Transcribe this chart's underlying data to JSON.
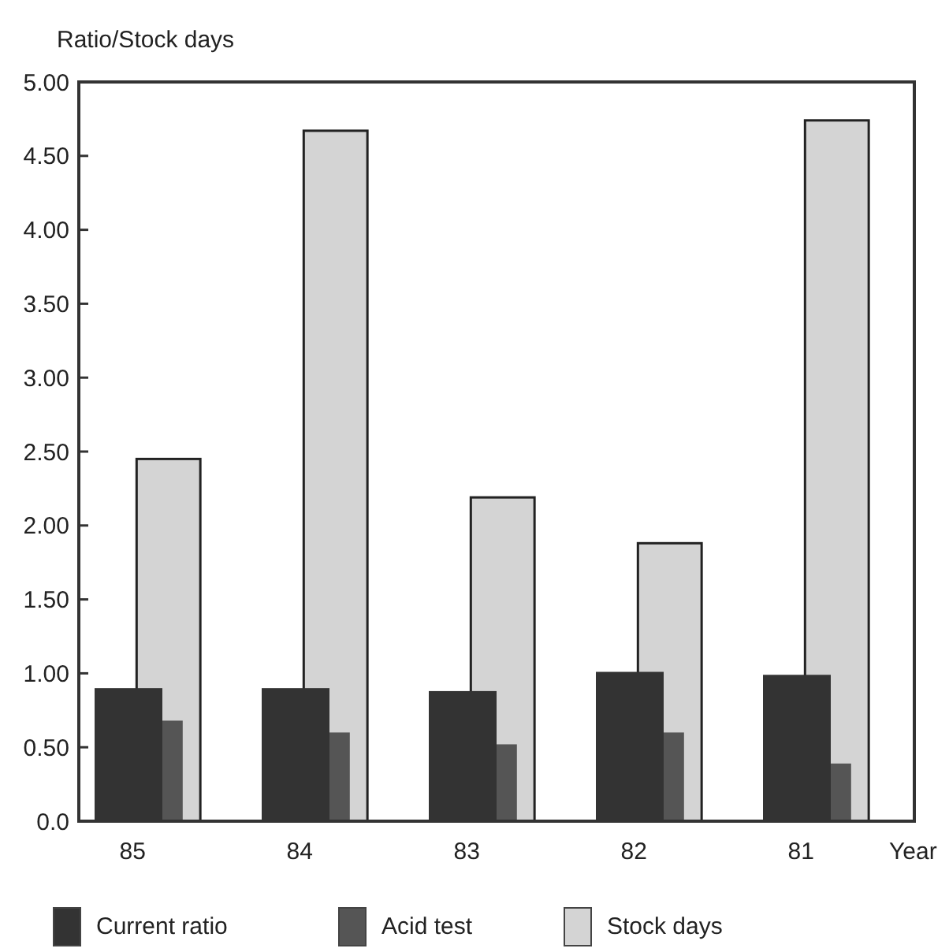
{
  "chart_data": {
    "type": "bar",
    "ylabel": "Ratio/Stock days",
    "xlabel": "Year",
    "categories": [
      "85",
      "84",
      "83",
      "82",
      "81"
    ],
    "series": [
      {
        "name": "Current ratio",
        "color": "#333333",
        "values": [
          0.9,
          0.9,
          0.88,
          1.01,
          0.99
        ]
      },
      {
        "name": "Acid test",
        "color": "#555555",
        "values": [
          0.68,
          0.6,
          0.52,
          0.6,
          0.39
        ]
      },
      {
        "name": "Stock days",
        "color": "#d4d4d4",
        "values": [
          2.45,
          4.67,
          2.19,
          1.88,
          4.74
        ]
      }
    ],
    "ylim": [
      0,
      5
    ],
    "yticks": [
      {
        "value": 0,
        "label": "0.0"
      },
      {
        "value": 0.5,
        "label": "0.50"
      },
      {
        "value": 1,
        "label": "1.00"
      },
      {
        "value": 1.5,
        "label": "1.50"
      },
      {
        "value": 2,
        "label": "2.00"
      },
      {
        "value": 2.5,
        "label": "2.50"
      },
      {
        "value": 3,
        "label": "3.00"
      },
      {
        "value": 3.5,
        "label": "3.50"
      },
      {
        "value": 4,
        "label": "4.00"
      },
      {
        "value": 4.5,
        "label": "4.50"
      },
      {
        "value": 5,
        "label": "5.00"
      }
    ],
    "grid": false,
    "legend": "bottom"
  }
}
